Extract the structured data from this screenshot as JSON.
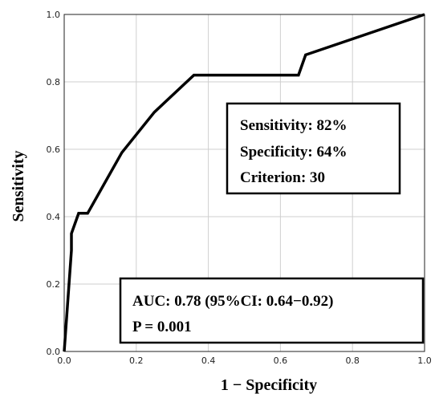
{
  "chart_data": {
    "type": "line",
    "xlabel": "1 − Specificity",
    "ylabel": "Sensitivity",
    "xlim": [
      0,
      1
    ],
    "ylim": [
      0,
      1
    ],
    "grid": true,
    "x_ticks": [
      "0.0",
      "0.2",
      "0.4",
      "0.6",
      "0.8",
      "1.0"
    ],
    "y_ticks": [
      "0.0",
      "0.2",
      "0.4",
      "0.6",
      "0.8",
      "1.0"
    ],
    "series": [
      {
        "x": [
          0.0,
          0.02,
          0.02,
          0.04,
          0.065,
          0.16,
          0.25,
          0.36,
          0.65,
          0.67,
          1.0
        ],
        "y": [
          0.0,
          0.3,
          0.35,
          0.41,
          0.41,
          0.59,
          0.71,
          0.82,
          0.82,
          0.88,
          1.0
        ],
        "color": "#000000"
      }
    ],
    "annotations": {
      "cutoff": [
        "Sensitivity: 82%",
        "Specificity: 64%",
        "Criterion: 30"
      ],
      "auc": [
        "AUC: 0.78 (95%CI: 0.64−0.92)",
        "P = 0.001"
      ]
    }
  }
}
